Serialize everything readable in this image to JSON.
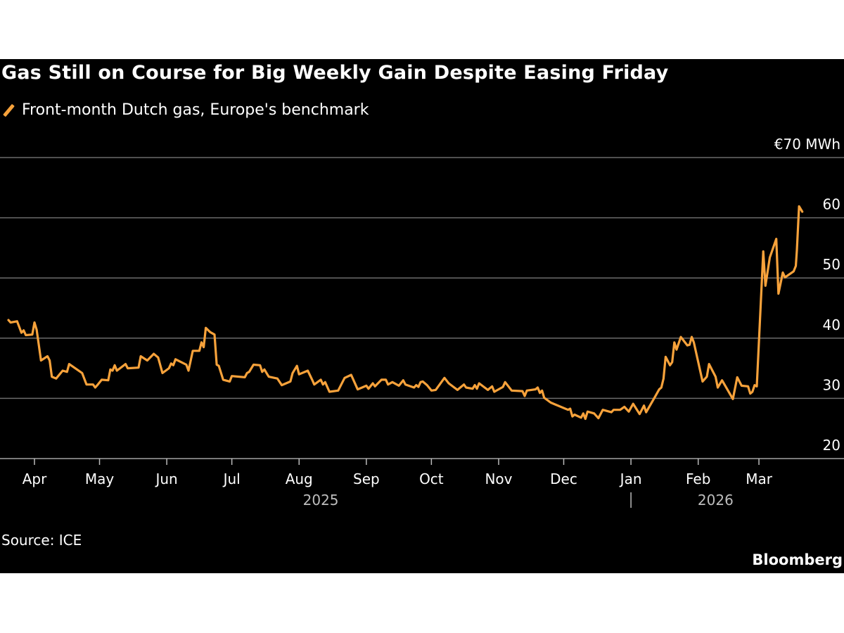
{
  "chart_data": {
    "type": "line",
    "title": "Gas Still on Course for Big Weekly Gain Despite Easing Friday",
    "series": [
      {
        "name": "Front-month Dutch gas, Europe's benchmark",
        "color": "#f7a23b",
        "x_unit": "days since 2025-04-01",
        "points": [
          [
            -12,
            43.0
          ],
          [
            -11,
            42.6
          ],
          [
            -8,
            42.8
          ],
          [
            -6,
            40.9
          ],
          [
            -5,
            41.3
          ],
          [
            -4,
            40.5
          ],
          [
            -1,
            40.6
          ],
          [
            0,
            42.6
          ],
          [
            1,
            41.4
          ],
          [
            3,
            36.3
          ],
          [
            6,
            37.0
          ],
          [
            7,
            36.3
          ],
          [
            8,
            33.6
          ],
          [
            10,
            33.3
          ],
          [
            13,
            34.6
          ],
          [
            15,
            34.4
          ],
          [
            16,
            35.7
          ],
          [
            22,
            34.2
          ],
          [
            24,
            32.3
          ],
          [
            27,
            32.3
          ],
          [
            28,
            31.8
          ],
          [
            29,
            32.2
          ],
          [
            31,
            33.1
          ],
          [
            34,
            33.0
          ],
          [
            35,
            34.8
          ],
          [
            36,
            34.6
          ],
          [
            37,
            35.5
          ],
          [
            38,
            34.6
          ],
          [
            42,
            35.7
          ],
          [
            43,
            35.0
          ],
          [
            48,
            35.1
          ],
          [
            49,
            37.0
          ],
          [
            52,
            36.3
          ],
          [
            55,
            37.4
          ],
          [
            57,
            36.8
          ],
          [
            59,
            34.2
          ],
          [
            62,
            35.0
          ],
          [
            63,
            35.8
          ],
          [
            64,
            35.5
          ],
          [
            65,
            36.5
          ],
          [
            70,
            35.6
          ],
          [
            71,
            34.6
          ],
          [
            72,
            36.2
          ],
          [
            73,
            37.9
          ],
          [
            76,
            37.9
          ],
          [
            77,
            39.3
          ],
          [
            78,
            38.5
          ],
          [
            79,
            41.7
          ],
          [
            81,
            41.0
          ],
          [
            83,
            40.6
          ],
          [
            84,
            35.6
          ],
          [
            85,
            35.4
          ],
          [
            87,
            33.1
          ],
          [
            90,
            32.8
          ],
          [
            91,
            33.7
          ],
          [
            97,
            33.5
          ],
          [
            98,
            34.2
          ],
          [
            99,
            34.4
          ],
          [
            101,
            35.6
          ],
          [
            104,
            35.5
          ],
          [
            105,
            34.4
          ],
          [
            106,
            34.8
          ],
          [
            108,
            33.6
          ],
          [
            112,
            33.3
          ],
          [
            114,
            32.2
          ],
          [
            118,
            32.8
          ],
          [
            119,
            34.2
          ],
          [
            121,
            35.4
          ],
          [
            122,
            34.0
          ],
          [
            126,
            34.6
          ],
          [
            128,
            33.1
          ],
          [
            129,
            32.3
          ],
          [
            132,
            33.1
          ],
          [
            133,
            32.3
          ],
          [
            134,
            32.7
          ],
          [
            136,
            31.1
          ],
          [
            140,
            31.3
          ],
          [
            143,
            33.4
          ],
          [
            146,
            33.9
          ],
          [
            149,
            31.5
          ],
          [
            153,
            32.1
          ],
          [
            154,
            31.6
          ],
          [
            156,
            32.5
          ],
          [
            157,
            32.0
          ],
          [
            160,
            33.1
          ],
          [
            162,
            33.1
          ],
          [
            163,
            32.3
          ],
          [
            165,
            32.7
          ],
          [
            168,
            32.1
          ],
          [
            170,
            33.0
          ],
          [
            171,
            32.3
          ],
          [
            175,
            31.8
          ],
          [
            176,
            32.2
          ],
          [
            177,
            31.9
          ],
          [
            178,
            32.7
          ],
          [
            179,
            32.8
          ],
          [
            181,
            32.2
          ],
          [
            183,
            31.3
          ],
          [
            185,
            31.4
          ],
          [
            189,
            33.4
          ],
          [
            191,
            32.5
          ],
          [
            195,
            31.4
          ],
          [
            198,
            32.3
          ],
          [
            199,
            31.8
          ],
          [
            202,
            31.6
          ],
          [
            203,
            32.2
          ],
          [
            204,
            31.6
          ],
          [
            205,
            32.5
          ],
          [
            209,
            31.4
          ],
          [
            211,
            32.0
          ],
          [
            212,
            31.1
          ],
          [
            216,
            31.9
          ],
          [
            217,
            32.7
          ],
          [
            220,
            31.3
          ],
          [
            225,
            31.2
          ],
          [
            226,
            30.4
          ],
          [
            227,
            31.3
          ],
          [
            231,
            31.5
          ],
          [
            232,
            31.8
          ],
          [
            233,
            30.9
          ],
          [
            234,
            31.3
          ],
          [
            235,
            30.1
          ],
          [
            238,
            29.3
          ],
          [
            240,
            29.0
          ],
          [
            246,
            28.1
          ],
          [
            247,
            28.3
          ],
          [
            248,
            27.0
          ],
          [
            249,
            27.3
          ],
          [
            252,
            26.8
          ],
          [
            253,
            27.5
          ],
          [
            254,
            26.6
          ],
          [
            255,
            27.8
          ],
          [
            258,
            27.5
          ],
          [
            260,
            26.7
          ],
          [
            262,
            28.1
          ],
          [
            266,
            27.7
          ],
          [
            267,
            28.1
          ],
          [
            270,
            28.1
          ],
          [
            272,
            28.6
          ],
          [
            274,
            27.8
          ],
          [
            276,
            29.1
          ],
          [
            279,
            27.4
          ],
          [
            281,
            28.8
          ],
          [
            282,
            27.7
          ],
          [
            286,
            30.2
          ],
          [
            288,
            31.5
          ],
          [
            289,
            31.8
          ],
          [
            290,
            33.3
          ],
          [
            291,
            36.9
          ],
          [
            293,
            35.5
          ],
          [
            294,
            36.0
          ],
          [
            295,
            39.3
          ],
          [
            296,
            38.1
          ],
          [
            298,
            40.2
          ],
          [
            301,
            38.8
          ],
          [
            302,
            38.9
          ],
          [
            303,
            40.2
          ],
          [
            304,
            39.3
          ],
          [
            308,
            32.8
          ],
          [
            310,
            33.6
          ],
          [
            311,
            35.7
          ],
          [
            314,
            33.6
          ],
          [
            315,
            31.8
          ],
          [
            317,
            33.0
          ],
          [
            322,
            29.9
          ],
          [
            324,
            33.5
          ],
          [
            326,
            32.1
          ],
          [
            329,
            32.0
          ],
          [
            330,
            30.8
          ],
          [
            331,
            31.1
          ],
          [
            332,
            32.2
          ],
          [
            333,
            32.0
          ],
          [
            336,
            54.4
          ],
          [
            337,
            48.7
          ],
          [
            339,
            53.4
          ],
          [
            342,
            56.5
          ],
          [
            343,
            47.4
          ],
          [
            345,
            50.9
          ],
          [
            346,
            50.1
          ],
          [
            350,
            51.1
          ],
          [
            351,
            52.0
          ],
          [
            351.5,
            54.6
          ],
          [
            352.5,
            61.9
          ],
          [
            354,
            61.0
          ]
        ]
      }
    ],
    "x_ticks": [
      {
        "label": "Apr",
        "day": 0
      },
      {
        "label": "May",
        "day": 30
      },
      {
        "label": "Jun",
        "day": 61
      },
      {
        "label": "Jul",
        "day": 91
      },
      {
        "label": "Aug",
        "day": 122
      },
      {
        "label": "Sep",
        "day": 153
      },
      {
        "label": "Oct",
        "day": 183
      },
      {
        "label": "Nov",
        "day": 214
      },
      {
        "label": "Dec",
        "day": 244
      },
      {
        "label": "Jan",
        "day": 275
      },
      {
        "label": "Feb",
        "day": 306
      },
      {
        "label": "Mar",
        "day": 334
      }
    ],
    "year_labels": [
      {
        "label": "2025",
        "day": 132
      },
      {
        "label": "2026",
        "day": 314
      }
    ],
    "year_divider_day": 275,
    "xlim": [
      -13,
      357
    ],
    "y_ticks": [
      {
        "label": "€70 MWh",
        "value": 70
      },
      {
        "label": "60",
        "value": 60
      },
      {
        "label": "50",
        "value": 50
      },
      {
        "label": "40",
        "value": 40
      },
      {
        "label": "30",
        "value": 30
      },
      {
        "label": "20",
        "value": 20
      }
    ],
    "ylim": [
      20,
      70
    ],
    "grid": true,
    "legend_position": "top-left",
    "xlabel": "",
    "ylabel": "€/MWh",
    "source": "Source: ICE",
    "brand": "Bloomberg"
  },
  "colors": {
    "background": "#000000",
    "line": "#f7a23b",
    "grid": "#6b6b6b",
    "text": "#ffffff",
    "year_text": "#bdbdbd"
  }
}
